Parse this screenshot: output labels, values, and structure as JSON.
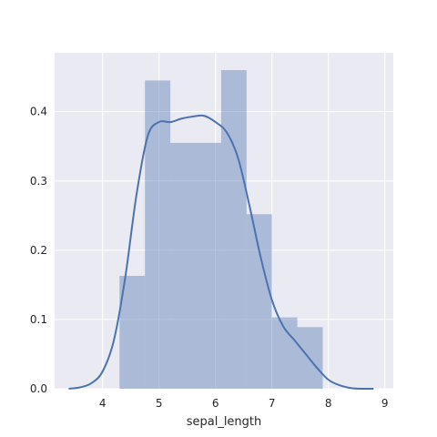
{
  "chart_data": {
    "type": "histogram",
    "style": "seaborn-darkgrid",
    "xlabel": "sepal_length",
    "ylabel": "",
    "title": "",
    "xlim": [
      3.15,
      9.15
    ],
    "ylim": [
      0,
      0.485
    ],
    "xticks": [
      4,
      5,
      6,
      7,
      8,
      9
    ],
    "yticks": [
      0.0,
      0.1,
      0.2,
      0.3,
      0.4
    ],
    "ytick_labels": [
      "0.0",
      "0.1",
      "0.2",
      "0.3",
      "0.4"
    ],
    "grid": true,
    "colors": {
      "axes_background": "#EAEAF2",
      "grid": "#FFFFFF",
      "bar_fill": "#4C72B0",
      "bar_opacity": 0.4,
      "kde_line": "#4C72B0"
    },
    "histogram_bins": [
      {
        "x0": 4.3,
        "x1": 4.75,
        "density": 0.163
      },
      {
        "x0": 4.75,
        "x1": 5.2,
        "density": 0.445
      },
      {
        "x0": 5.2,
        "x1": 5.65,
        "density": 0.355
      },
      {
        "x0": 5.65,
        "x1": 6.1,
        "density": 0.355
      },
      {
        "x0": 6.1,
        "x1": 6.55,
        "density": 0.46
      },
      {
        "x0": 6.55,
        "x1": 7.0,
        "density": 0.252
      },
      {
        "x0": 7.0,
        "x1": 7.45,
        "density": 0.103
      },
      {
        "x0": 7.45,
        "x1": 7.9,
        "density": 0.089
      }
    ],
    "kde": {
      "x": [
        3.4,
        3.6,
        3.8,
        4.0,
        4.2,
        4.4,
        4.6,
        4.8,
        5.0,
        5.2,
        5.4,
        5.6,
        5.8,
        6.0,
        6.2,
        6.4,
        6.6,
        6.8,
        7.0,
        7.2,
        7.4,
        7.6,
        7.8,
        8.0,
        8.2,
        8.4,
        8.6,
        8.8
      ],
      "y": [
        0.0,
        0.002,
        0.008,
        0.025,
        0.07,
        0.16,
        0.28,
        0.365,
        0.385,
        0.385,
        0.39,
        0.393,
        0.394,
        0.385,
        0.37,
        0.333,
        0.265,
        0.19,
        0.128,
        0.09,
        0.07,
        0.05,
        0.03,
        0.013,
        0.005,
        0.001,
        0.0,
        0.0
      ]
    }
  }
}
